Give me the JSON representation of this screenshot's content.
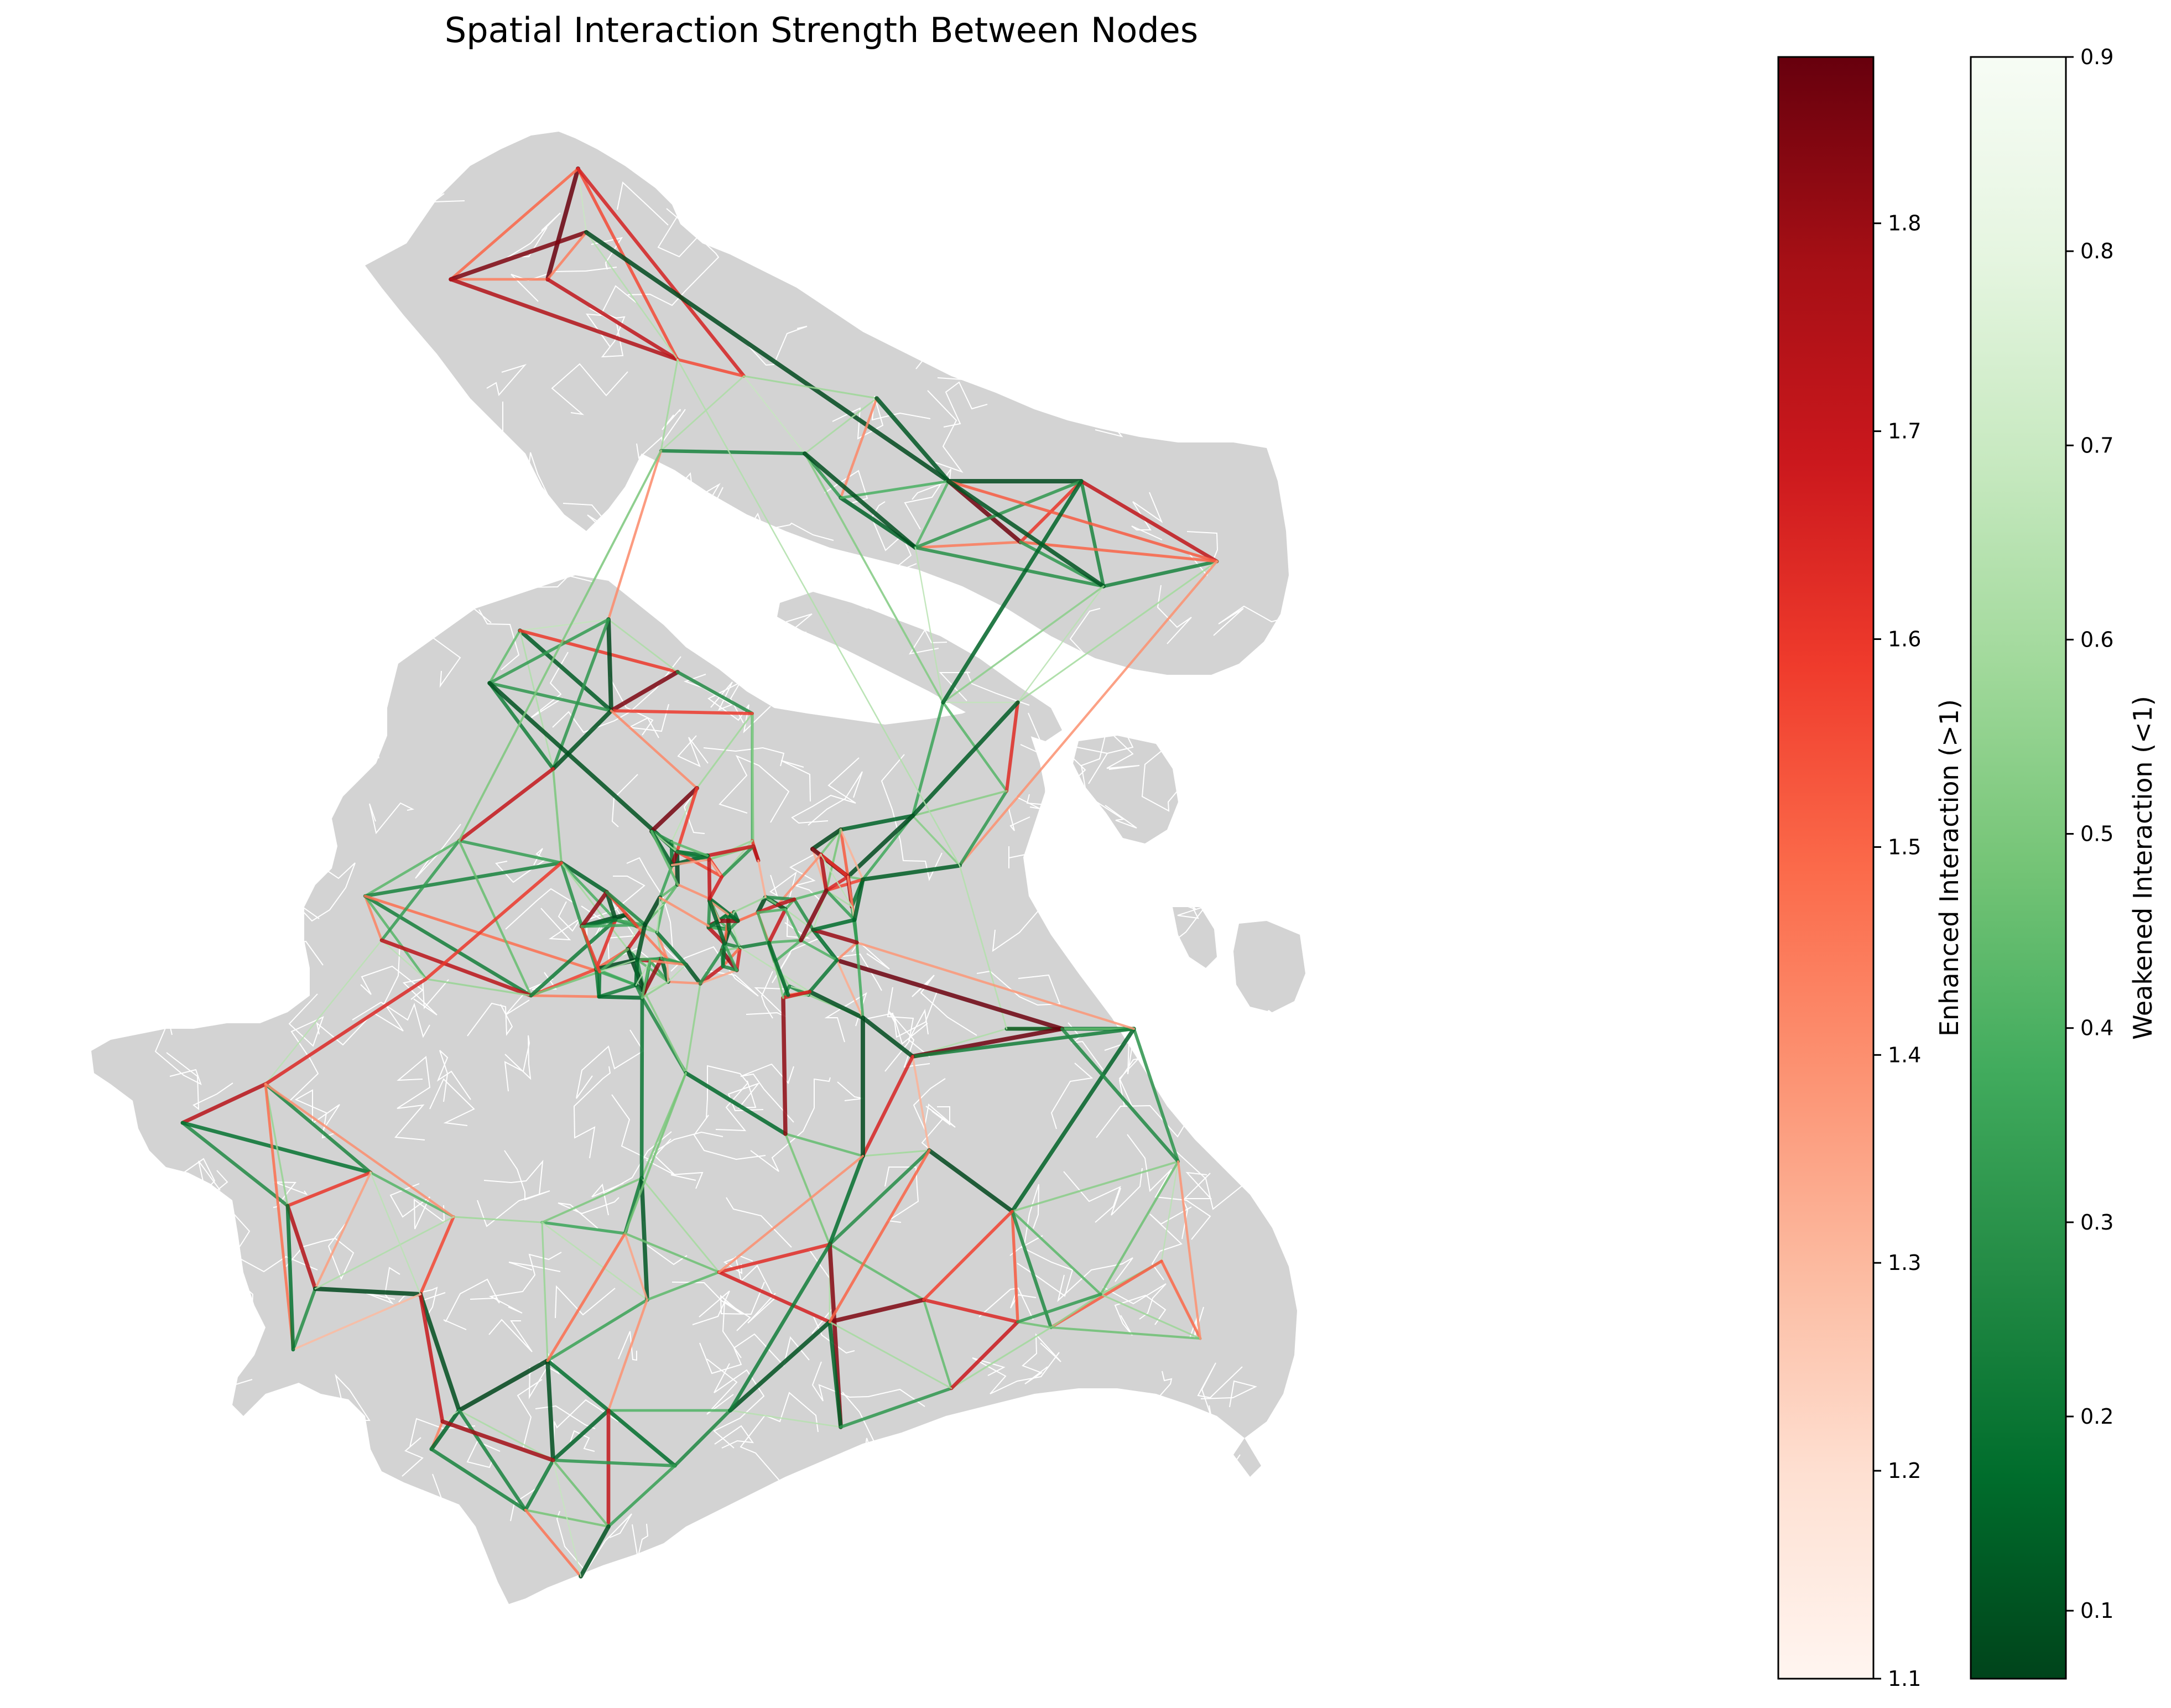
{
  "title": "Spatial Interaction Strength Between Nodes",
  "colors": {
    "land": "#d3d3d3",
    "district_border": "#ffffff",
    "water": "#ffffff",
    "enhanced_cmap": [
      "#fff5f0",
      "#fee0d2",
      "#fcbba1",
      "#fc9272",
      "#fb6a4a",
      "#ef3b2c",
      "#cb181d",
      "#a50f15",
      "#67000d"
    ],
    "weakened_cmap": [
      "#00441b",
      "#006d2c",
      "#238b45",
      "#41ab5d",
      "#74c476",
      "#a1d99b",
      "#c7e9c0",
      "#e5f5e0",
      "#f7fcf5"
    ]
  },
  "colorbars": {
    "enhanced": {
      "label": "Enhanced Interaction (>1)",
      "vmin": 1.1,
      "vmax": 1.88,
      "ticks": [
        "1.1",
        "1.2",
        "1.3",
        "1.4",
        "1.5",
        "1.6",
        "1.7",
        "1.8"
      ]
    },
    "weakened": {
      "label": "Weakened Interaction (<1)",
      "vmin": 0.065,
      "vmax": 0.9,
      "ticks": [
        "0.1",
        "0.2",
        "0.3",
        "0.4",
        "0.5",
        "0.6",
        "0.7",
        "0.8",
        "0.9"
      ]
    }
  }
}
